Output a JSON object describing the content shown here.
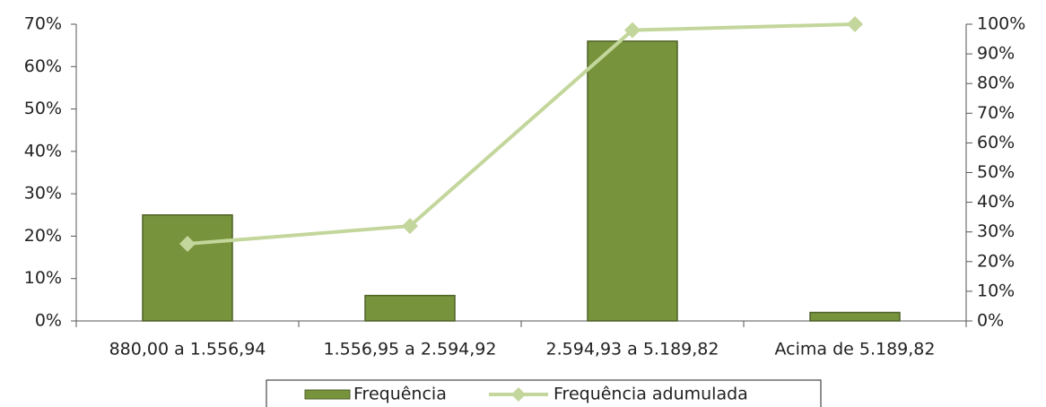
{
  "chart_data": {
    "type": "bar",
    "categories": [
      "880,00 a 1.556,94",
      "1.556,95 a 2.594,92",
      "2.594,93 a 5.189,82",
      "Acima de 5.189,82"
    ],
    "series": [
      {
        "name": "Frequência",
        "type": "bar",
        "color": "#77933c",
        "values": [
          25,
          6,
          66,
          2
        ]
      },
      {
        "name": "Frequência adumulada",
        "type": "line",
        "axis": "y2",
        "color": "#c3d69b",
        "values": [
          26,
          32,
          98,
          100
        ]
      }
    ],
    "ylim": [
      0,
      70
    ],
    "yticks": [
      {
        "value": 0,
        "label": "0%"
      },
      {
        "value": 10,
        "label": "10%"
      },
      {
        "value": 20,
        "label": "20%"
      },
      {
        "value": 30,
        "label": "30%"
      },
      {
        "value": 40,
        "label": "40%"
      },
      {
        "value": 50,
        "label": "50%"
      },
      {
        "value": 60,
        "label": "60%"
      },
      {
        "value": 70,
        "label": "70%"
      }
    ],
    "y2lim": [
      0,
      100
    ],
    "y2ticks": [
      {
        "value": 0,
        "label": "0%"
      },
      {
        "value": 10,
        "label": "10%"
      },
      {
        "value": 20,
        "label": "20%"
      },
      {
        "value": 30,
        "label": "30%"
      },
      {
        "value": 40,
        "label": "40%"
      },
      {
        "value": 50,
        "label": "50%"
      },
      {
        "value": 60,
        "label": "60%"
      },
      {
        "value": 70,
        "label": "70%"
      },
      {
        "value": 80,
        "label": "80%"
      },
      {
        "value": 90,
        "label": "90%"
      },
      {
        "value": 100,
        "label": "100%"
      }
    ],
    "grid": false,
    "legend": "bottom"
  }
}
